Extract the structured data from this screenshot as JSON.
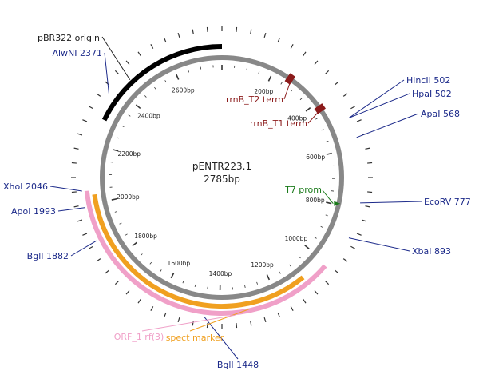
{
  "plasmid": {
    "name": "pENTR223.1",
    "length_label": "2785bp",
    "length_bp": 2785
  },
  "colors": {
    "site": "#1c2a8a",
    "term": "#8b1a1a",
    "promoter": "#1a7a1a",
    "pink_feature": "#f0a0c8",
    "orange_feature": "#f0a020",
    "black_feature": "#000000",
    "backbone": "#888888"
  },
  "tick_labels": [
    {
      "bp": 200,
      "text": "200bp"
    },
    {
      "bp": 400,
      "text": "400bp"
    },
    {
      "bp": 600,
      "text": "600bp"
    },
    {
      "bp": 800,
      "text": "800bp"
    },
    {
      "bp": 1000,
      "text": "1000bp"
    },
    {
      "bp": 1200,
      "text": "1200bp"
    },
    {
      "bp": 1400,
      "text": "1400bp"
    },
    {
      "bp": 1600,
      "text": "1600bp"
    },
    {
      "bp": 1800,
      "text": "1800bp"
    },
    {
      "bp": 2000,
      "text": "2000bp"
    },
    {
      "bp": 2200,
      "text": "2200bp"
    },
    {
      "bp": 2400,
      "text": "2400bp"
    },
    {
      "bp": 2600,
      "text": "2600bp"
    }
  ],
  "arc_features": [
    {
      "id": "ori",
      "label": "pBR322 origin",
      "start_bp": 2290,
      "end_bp": 2785,
      "color": "#000000",
      "label_color": "#222222"
    },
    {
      "id": "orf",
      "label": "ORF_1 rf(3)",
      "start_bp": 1010,
      "end_bp": 2045,
      "color": "#f0a0c8",
      "label_color": "#f0a0c8"
    },
    {
      "id": "spect",
      "label": "spect marker",
      "start_bp": 1090,
      "end_bp": 2030,
      "color": "#f0a020",
      "label_color": "#f0a020"
    }
  ],
  "box_features": [
    {
      "id": "t2",
      "label": "rrnB_T2 term",
      "bp": 268,
      "color": "#8b1a1a"
    },
    {
      "id": "t1",
      "label": "rrnB_T1 term",
      "bp": 425,
      "color": "#8b1a1a"
    }
  ],
  "promoter": {
    "label": "T7 prom",
    "bp": 795,
    "color": "#1a7a1a"
  },
  "sites": [
    {
      "name": "AlwNI 2371",
      "bp": 2371
    },
    {
      "name": "HincII 502",
      "bp": 502
    },
    {
      "name": "HpaI 502",
      "bp": 502
    },
    {
      "name": "ApaI 568",
      "bp": 568
    },
    {
      "name": "EcoRV 777",
      "bp": 777
    },
    {
      "name": "XbaI 893",
      "bp": 893
    },
    {
      "name": "BglI 1448",
      "bp": 1448
    },
    {
      "name": "BglI 1882",
      "bp": 1882
    },
    {
      "name": "ApoI 1993",
      "bp": 1993
    },
    {
      "name": "XhoI 2046",
      "bp": 2046
    }
  ]
}
